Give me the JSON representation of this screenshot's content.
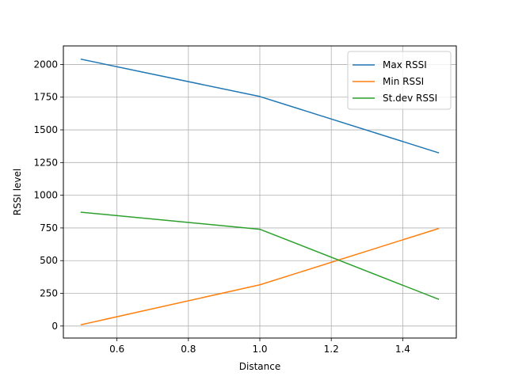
{
  "chart_data": {
    "type": "line",
    "title": "",
    "xlabel": "Distance",
    "ylabel": "RSSI level",
    "x": [
      0.5,
      1.0,
      1.5
    ],
    "series": [
      {
        "name": "Max RSSI",
        "color": "#1f77b4",
        "values": [
          2040,
          1755,
          1325
        ]
      },
      {
        "name": "Min RSSI",
        "color": "#ff7f0e",
        "values": [
          10,
          315,
          745
        ]
      },
      {
        "name": "St.dev RSSI",
        "color": "#2ca02c",
        "values": [
          870,
          740,
          205
        ]
      }
    ],
    "xlim": [
      0.45,
      1.55
    ],
    "ylim": [
      -92,
      2142
    ],
    "xticks": [
      0.6,
      0.8,
      1.0,
      1.2,
      1.4
    ],
    "xtick_labels": [
      "0.6",
      "0.8",
      "1.0",
      "1.2",
      "1.4"
    ],
    "yticks": [
      0,
      250,
      500,
      750,
      1000,
      1250,
      1500,
      1750,
      2000
    ],
    "ytick_labels": [
      "0",
      "250",
      "500",
      "750",
      "1000",
      "1250",
      "1500",
      "1750",
      "2000"
    ],
    "grid": true,
    "legend_position": "upper-right"
  }
}
